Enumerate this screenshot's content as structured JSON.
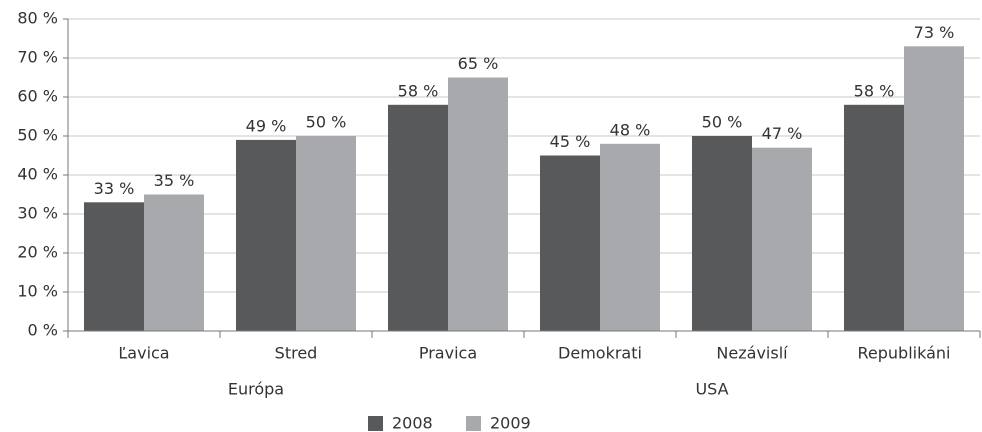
{
  "chart_data": {
    "type": "bar",
    "categories": [
      "Ľavica",
      "Stred",
      "Pravica",
      "Demokrati",
      "Nezávislí",
      "Republikáni"
    ],
    "groups": [
      {
        "name": "Európa",
        "categories": [
          "Ľavica",
          "Stred",
          "Pravica"
        ]
      },
      {
        "name": "USA",
        "categories": [
          "Demokrati",
          "Nezávislí",
          "Republikáni"
        ]
      }
    ],
    "series": [
      {
        "name": "2008",
        "color": "#58595b",
        "values": [
          33,
          49,
          58,
          45,
          50,
          58
        ],
        "value_labels": [
          "33 %",
          "49 %",
          "58 %",
          "45 %",
          "50 %",
          "58 %"
        ]
      },
      {
        "name": "2009",
        "color": "#a7a9ac",
        "values": [
          35,
          50,
          65,
          48,
          47,
          73
        ],
        "value_labels": [
          "35 %",
          "50 %",
          "65 %",
          "48 %",
          "47 %",
          "73 %"
        ]
      }
    ],
    "ylim": [
      0,
      80
    ],
    "yticks": [
      {
        "value": 0,
        "label": "0 %"
      },
      {
        "value": 10,
        "label": "10 %"
      },
      {
        "value": 20,
        "label": "20 %"
      },
      {
        "value": 30,
        "label": "30 %"
      },
      {
        "value": 40,
        "label": "40 %"
      },
      {
        "value": 50,
        "label": "50 %"
      },
      {
        "value": 60,
        "label": "60 %"
      },
      {
        "value": 70,
        "label": "70 %"
      },
      {
        "value": 80,
        "label": "80 %"
      }
    ],
    "grid": true,
    "legend": "bottom"
  }
}
